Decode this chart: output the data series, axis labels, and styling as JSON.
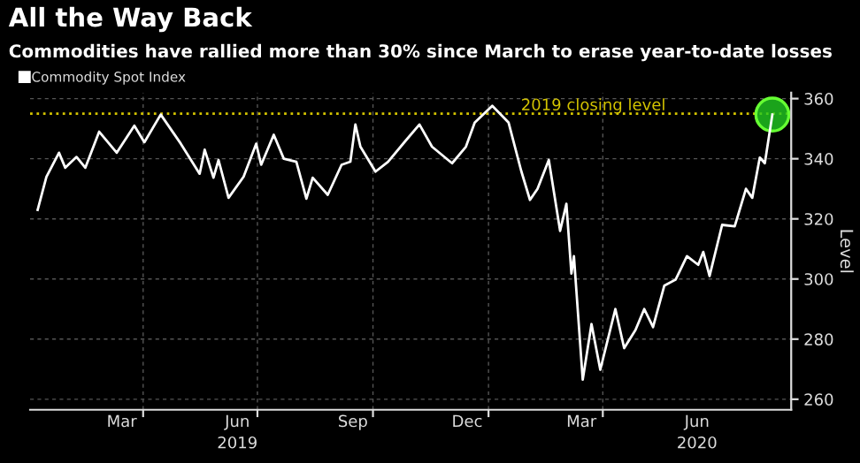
{
  "chart_data": {
    "type": "line",
    "title": "All the Way Back",
    "subtitle": "Commodities have rallied more than 30% since March to erase year-to-date losses",
    "ylabel": "Level",
    "series": [
      {
        "name": "Commodity Spot Index",
        "color": "#ffffff",
        "x": [
          "2019-01-07",
          "2019-01-14",
          "2019-01-24",
          "2019-01-29",
          "2019-02-07",
          "2019-02-14",
          "2019-02-25",
          "2019-03-11",
          "2019-03-25",
          "2019-04-02",
          "2019-04-15",
          "2019-05-01",
          "2019-05-16",
          "2019-05-20",
          "2019-05-27",
          "2019-05-31",
          "2019-06-08",
          "2019-06-20",
          "2019-06-30",
          "2019-07-04",
          "2019-07-14",
          "2019-07-22",
          "2019-08-01",
          "2019-08-09",
          "2019-08-14",
          "2019-08-26",
          "2019-09-06",
          "2019-09-13",
          "2019-09-17",
          "2019-09-21",
          "2019-10-03",
          "2019-10-13",
          "2019-10-27",
          "2019-11-07",
          "2019-11-17",
          "2019-12-03",
          "2019-12-14",
          "2019-12-21",
          "2020-01-04",
          "2020-01-17",
          "2020-01-27",
          "2020-02-03",
          "2020-02-09",
          "2020-02-18",
          "2020-02-27",
          "2020-03-03",
          "2020-03-07",
          "2020-03-09",
          "2020-03-16",
          "2020-03-23",
          "2020-03-30",
          "2020-04-11",
          "2020-04-18",
          "2020-04-27",
          "2020-05-04",
          "2020-05-11",
          "2020-05-20",
          "2020-05-29",
          "2020-06-07",
          "2020-06-16",
          "2020-06-20",
          "2020-06-25",
          "2020-07-05",
          "2020-07-15",
          "2020-07-24",
          "2020-07-29",
          "2020-08-04",
          "2020-08-08",
          "2020-08-14"
        ],
        "values": [
          323,
          334,
          342,
          337,
          340.6,
          337,
          349,
          342,
          351,
          345.5,
          354.7,
          345,
          335,
          343,
          333.7,
          339.6,
          327,
          334,
          345,
          338,
          348,
          340,
          339,
          326.7,
          333.7,
          328,
          338,
          339,
          351.4,
          344,
          335.7,
          339,
          346,
          351.4,
          344,
          338.5,
          344,
          352,
          357.6,
          352,
          336,
          326.3,
          330,
          339.6,
          316,
          325,
          301.8,
          307.6,
          266.5,
          285,
          269.8,
          290,
          277,
          283,
          290,
          284,
          297.8,
          299.8,
          307.6,
          304.7,
          309,
          301,
          318,
          317.5,
          330,
          327,
          340.4,
          338.5,
          354.7
        ]
      },
      {
        "type": "scatter",
        "marker": "circle",
        "color": "#22cc22",
        "x": [
          "2020-08-14"
        ],
        "values": [
          354.7
        ]
      }
    ],
    "ref_lines": [
      {
        "axis": "y",
        "value": 355,
        "label": "2019 closing level",
        "color": "#d4c400",
        "line_style": "dotted"
      }
    ],
    "xlim": [
      "2019-01-01",
      "2020-08-29"
    ],
    "xticks": [
      {
        "value": "2019-04-01",
        "label": null
      },
      {
        "value": "2019-07-01",
        "label": null
      },
      {
        "value": "2019-10-01",
        "label": null
      },
      {
        "value": "2020-01-01",
        "label": null
      },
      {
        "value": "2020-04-01",
        "label": null
      },
      {
        "value": "2019-03-15",
        "label": "Mar"
      },
      {
        "value": "2019-06-15",
        "label": "Jun\n2019"
      },
      {
        "value": "2019-09-15",
        "label": "Sep"
      },
      {
        "value": "2019-12-15",
        "label": "Dec"
      },
      {
        "value": "2020-03-15",
        "label": "Mar"
      },
      {
        "value": "2020-06-15",
        "label": "Jun\n2020"
      }
    ],
    "ylim": [
      256.5,
      362
    ],
    "yticks": [
      260,
      280,
      300,
      320,
      340,
      360
    ],
    "grid": true,
    "legend": "top left",
    "marker": "none",
    "line_style": "solid"
  }
}
